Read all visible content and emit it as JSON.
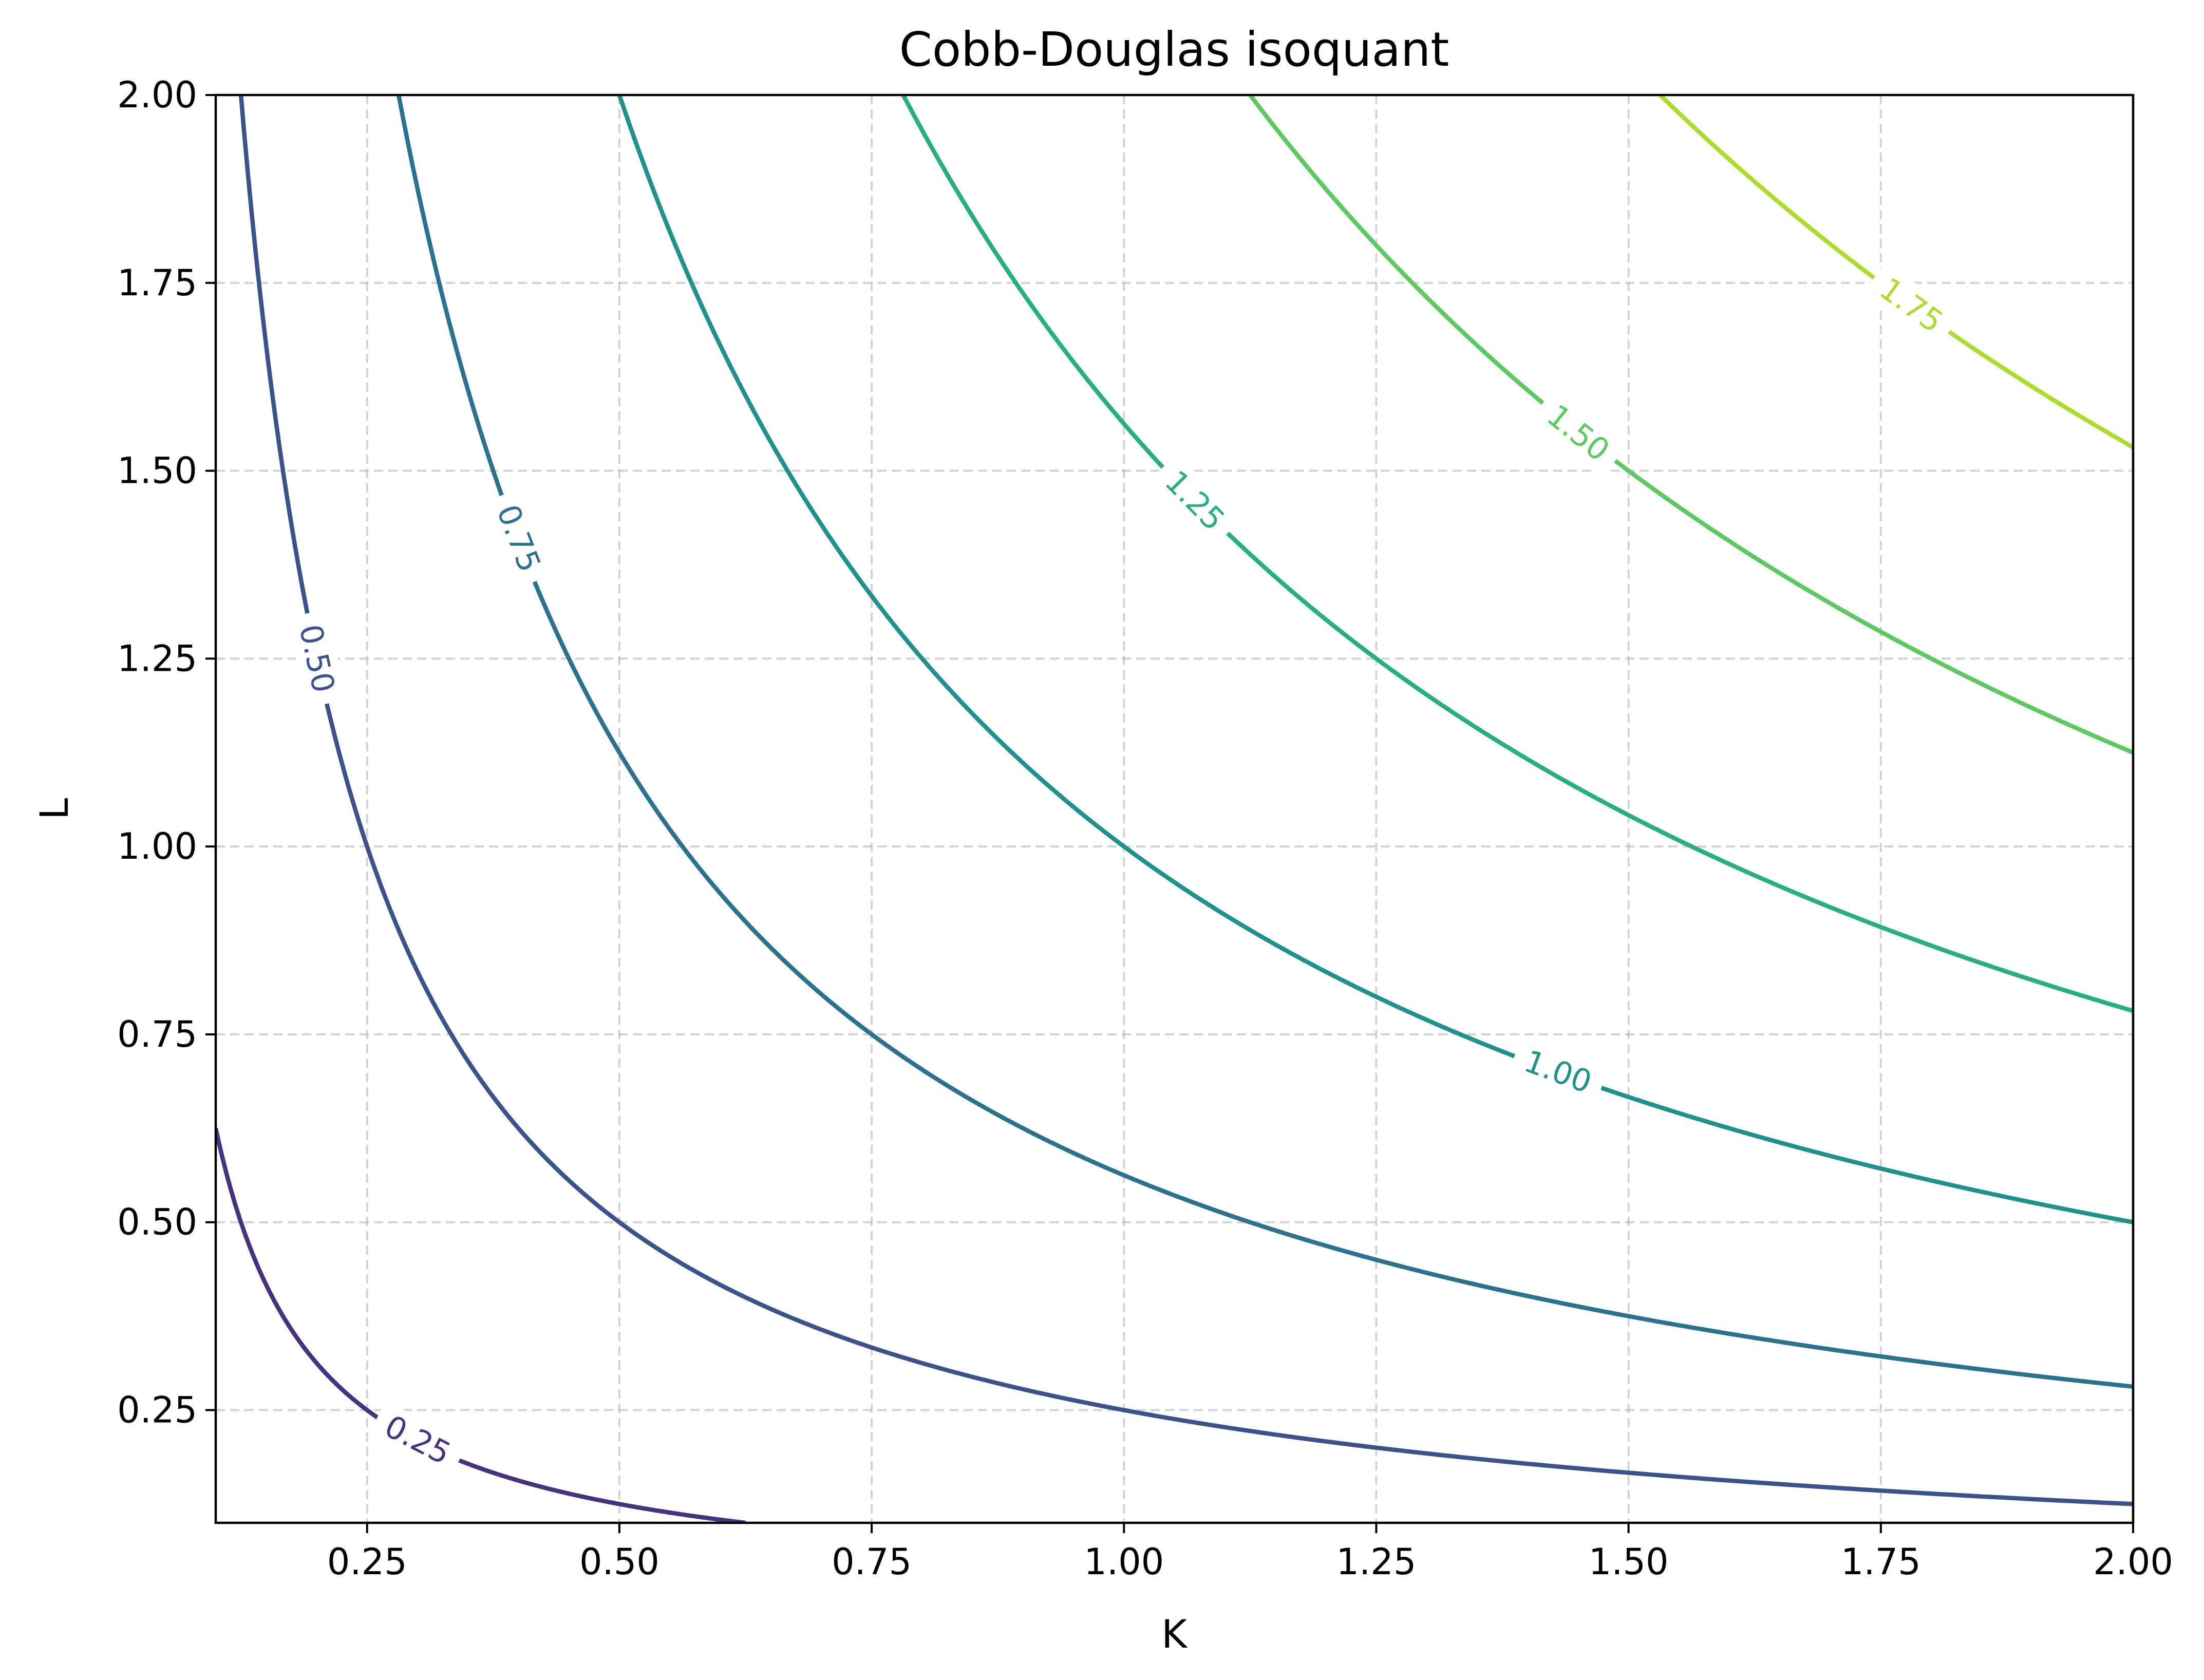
{
  "chart_data": {
    "type": "contour",
    "title": "Cobb-Douglas isoquant",
    "xlabel": "K",
    "ylabel": "L",
    "xlim": [
      0.1,
      2.0
    ],
    "ylim": [
      0.1,
      2.0
    ],
    "xticks": [
      0.25,
      0.5,
      0.75,
      1.0,
      1.25,
      1.5,
      1.75,
      2.0
    ],
    "xtick_labels": [
      "0.25",
      "0.50",
      "0.75",
      "1.00",
      "1.25",
      "1.50",
      "1.75",
      "2.00"
    ],
    "yticks": [
      0.25,
      0.5,
      0.75,
      1.0,
      1.25,
      1.5,
      1.75,
      2.0
    ],
    "ytick_labels": [
      "0.25",
      "0.50",
      "0.75",
      "1.00",
      "1.25",
      "1.50",
      "1.75",
      "2.00"
    ],
    "grid": true,
    "function": "K^0.5 * L^0.5",
    "levels": [
      {
        "value": 0.25,
        "label": "0.25",
        "color": "#46327e",
        "label_at": {
          "K": 0.3,
          "L": 0.21
        }
      },
      {
        "value": 0.5,
        "label": "0.50",
        "color": "#3b528b",
        "label_at": {
          "K": 0.2,
          "L": 1.25
        }
      },
      {
        "value": 0.75,
        "label": "0.75",
        "color": "#2c728e",
        "label_at": {
          "K": 0.4,
          "L": 1.41
        }
      },
      {
        "value": 1.0,
        "label": "1.00",
        "color": "#21918c",
        "label_at": {
          "K": 1.43,
          "L": 0.7
        }
      },
      {
        "value": 1.25,
        "label": "1.25",
        "color": "#28ae80",
        "label_at": {
          "K": 1.07,
          "L": 1.46
        }
      },
      {
        "value": 1.5,
        "label": "1.50",
        "color": "#5ec962",
        "label_at": {
          "K": 1.45,
          "L": 1.55
        }
      },
      {
        "value": 1.75,
        "label": "1.75",
        "color": "#addc30",
        "label_at": {
          "K": 1.78,
          "L": 1.72
        }
      }
    ]
  }
}
